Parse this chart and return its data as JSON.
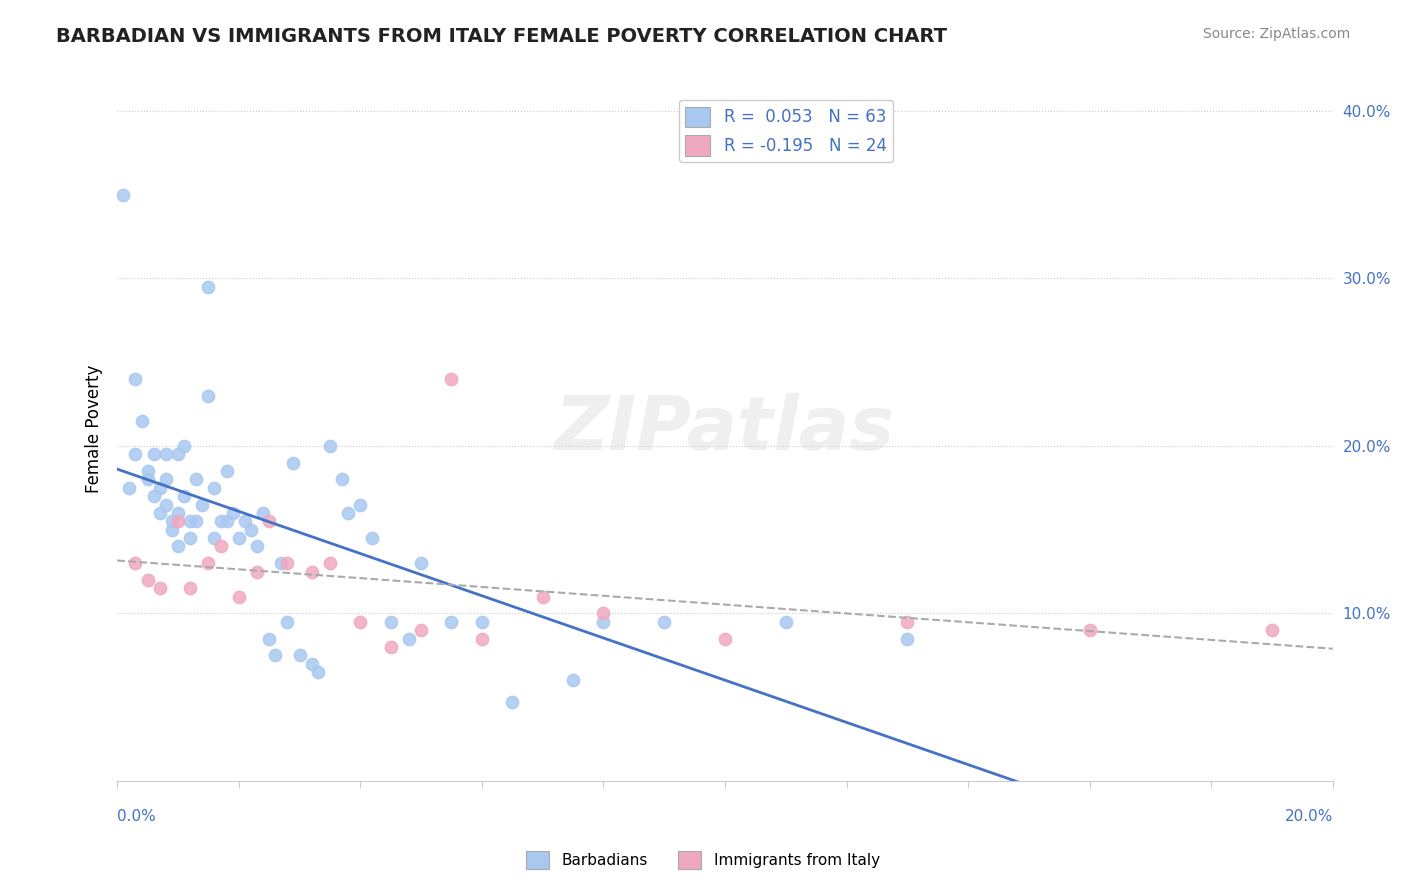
{
  "title": "BARBADIAN VS IMMIGRANTS FROM ITALY FEMALE POVERTY CORRELATION CHART",
  "source": "Source: ZipAtlas.com",
  "ylabel": "Female Poverty",
  "xlim": [
    0.0,
    0.2
  ],
  "ylim": [
    0.0,
    0.42
  ],
  "ytick_vals": [
    0.1,
    0.2,
    0.3,
    0.4
  ],
  "ytick_labels": [
    "10.0%",
    "20.0%",
    "30.0%",
    "40.0%"
  ],
  "barbadian_color": "#a8c8f0",
  "italy_color": "#f0a8c0",
  "barbadian_line_color": "#4472c4",
  "italy_line_color": "#d06080",
  "italy_trend_color": "#aaaaaa",
  "legend_label_1": "R =  0.053   N = 63",
  "legend_label_2": "R = -0.195   N = 24",
  "watermark": "ZIPatlas",
  "barbadian_x": [
    0.001,
    0.002,
    0.003,
    0.003,
    0.004,
    0.005,
    0.005,
    0.006,
    0.006,
    0.007,
    0.007,
    0.008,
    0.008,
    0.008,
    0.009,
    0.009,
    0.01,
    0.01,
    0.01,
    0.011,
    0.011,
    0.012,
    0.012,
    0.013,
    0.013,
    0.014,
    0.015,
    0.015,
    0.016,
    0.016,
    0.017,
    0.018,
    0.018,
    0.019,
    0.02,
    0.021,
    0.022,
    0.023,
    0.024,
    0.025,
    0.026,
    0.027,
    0.028,
    0.029,
    0.03,
    0.032,
    0.033,
    0.035,
    0.037,
    0.038,
    0.04,
    0.042,
    0.045,
    0.048,
    0.05,
    0.055,
    0.06,
    0.065,
    0.075,
    0.08,
    0.09,
    0.11,
    0.13
  ],
  "barbadian_y": [
    0.35,
    0.175,
    0.24,
    0.195,
    0.215,
    0.185,
    0.18,
    0.195,
    0.17,
    0.175,
    0.16,
    0.195,
    0.18,
    0.165,
    0.155,
    0.15,
    0.195,
    0.16,
    0.14,
    0.2,
    0.17,
    0.155,
    0.145,
    0.18,
    0.155,
    0.165,
    0.295,
    0.23,
    0.175,
    0.145,
    0.155,
    0.155,
    0.185,
    0.16,
    0.145,
    0.155,
    0.15,
    0.14,
    0.16,
    0.085,
    0.075,
    0.13,
    0.095,
    0.19,
    0.075,
    0.07,
    0.065,
    0.2,
    0.18,
    0.16,
    0.165,
    0.145,
    0.095,
    0.085,
    0.13,
    0.095,
    0.095,
    0.047,
    0.06,
    0.095,
    0.095,
    0.095,
    0.085
  ],
  "italy_x": [
    0.003,
    0.005,
    0.007,
    0.01,
    0.012,
    0.015,
    0.017,
    0.02,
    0.023,
    0.025,
    0.028,
    0.032,
    0.035,
    0.04,
    0.045,
    0.05,
    0.055,
    0.06,
    0.07,
    0.08,
    0.1,
    0.13,
    0.16,
    0.19
  ],
  "italy_y": [
    0.13,
    0.12,
    0.115,
    0.155,
    0.115,
    0.13,
    0.14,
    0.11,
    0.125,
    0.155,
    0.13,
    0.125,
    0.13,
    0.095,
    0.08,
    0.09,
    0.24,
    0.085,
    0.11,
    0.1,
    0.085,
    0.095,
    0.09,
    0.09
  ]
}
